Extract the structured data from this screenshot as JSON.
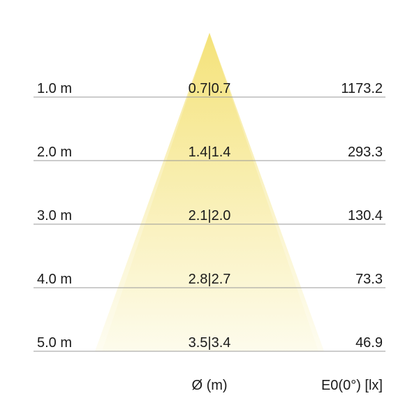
{
  "rows": [
    {
      "distance": "1.0 m",
      "diameter": "0.7|0.7",
      "illuminance": "1173.2"
    },
    {
      "distance": "2.0 m",
      "diameter": "1.4|1.4",
      "illuminance": "293.3"
    },
    {
      "distance": "3.0 m",
      "diameter": "2.1|2.0",
      "illuminance": "130.4"
    },
    {
      "distance": "4.0 m",
      "diameter": "2.8|2.7",
      "illuminance": "73.3"
    },
    {
      "distance": "5.0 m",
      "diameter": "3.5|3.4",
      "illuminance": "46.9"
    }
  ],
  "footer": {
    "diameter_label": "Ø (m)",
    "illuminance_label": "E0(0°) [lx]"
  },
  "colors": {
    "cone_top": "#f3df6a",
    "cone_bottom": "#fdfbea",
    "line": "#9a9a9a"
  }
}
